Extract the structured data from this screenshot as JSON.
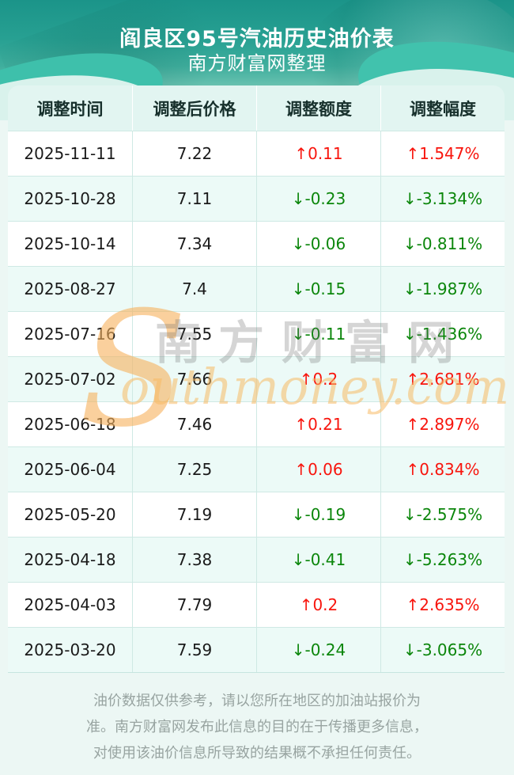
{
  "header": {
    "title": "阎良区95号汽油历史油价表",
    "subtitle": "南方财富网整理"
  },
  "table": {
    "columns": [
      "调整时间",
      "调整后价格",
      "调整额度",
      "调整幅度"
    ],
    "arrow_up": "↑",
    "arrow_down": "↓",
    "rows": [
      {
        "date": "2025-11-11",
        "price": "7.22",
        "change": "0.11",
        "pct": "1.547%",
        "dir": "up"
      },
      {
        "date": "2025-10-28",
        "price": "7.11",
        "change": "-0.23",
        "pct": "-3.134%",
        "dir": "down"
      },
      {
        "date": "2025-10-14",
        "price": "7.34",
        "change": "-0.06",
        "pct": "-0.811%",
        "dir": "down"
      },
      {
        "date": "2025-08-27",
        "price": "7.4",
        "change": "-0.15",
        "pct": "-1.987%",
        "dir": "down"
      },
      {
        "date": "2025-07-16",
        "price": "7.55",
        "change": "-0.11",
        "pct": "-1.436%",
        "dir": "down"
      },
      {
        "date": "2025-07-02",
        "price": "7.66",
        "change": "0.2",
        "pct": "2.681%",
        "dir": "up"
      },
      {
        "date": "2025-06-18",
        "price": "7.46",
        "change": "0.21",
        "pct": "2.897%",
        "dir": "up"
      },
      {
        "date": "2025-06-04",
        "price": "7.25",
        "change": "0.06",
        "pct": "0.834%",
        "dir": "up"
      },
      {
        "date": "2025-05-20",
        "price": "7.19",
        "change": "-0.19",
        "pct": "-2.575%",
        "dir": "down"
      },
      {
        "date": "2025-04-18",
        "price": "7.38",
        "change": "-0.41",
        "pct": "-5.263%",
        "dir": "down"
      },
      {
        "date": "2025-04-03",
        "price": "7.79",
        "change": "0.2",
        "pct": "2.635%",
        "dir": "up"
      },
      {
        "date": "2025-03-20",
        "price": "7.59",
        "change": "-0.24",
        "pct": "-3.065%",
        "dir": "down"
      }
    ]
  },
  "watermark": {
    "initial": "S",
    "cn": "南方财富网",
    "en": "outhmoney.com"
  },
  "footer": {
    "lines": [
      "油价数据仅供参考，请以您所在地区的加油站报价为",
      "准。南方财富网发布此信息的目的在于传播更多信息，",
      "对使用该油价信息所导致的结果概不承担任何责任。"
    ]
  },
  "colors": {
    "up_red": "#f8150d",
    "down_green": "#0b860b",
    "hero_teal_top": "#1b9489",
    "hero_accent_wave": "#3ec0ab",
    "table_header_bg": "#e2f5f1",
    "row_alt_bg": "#ecfaf7",
    "border": "#cfe9e4",
    "footer_gray": "#98a4a1",
    "watermark_orange": "#f7b15c"
  }
}
